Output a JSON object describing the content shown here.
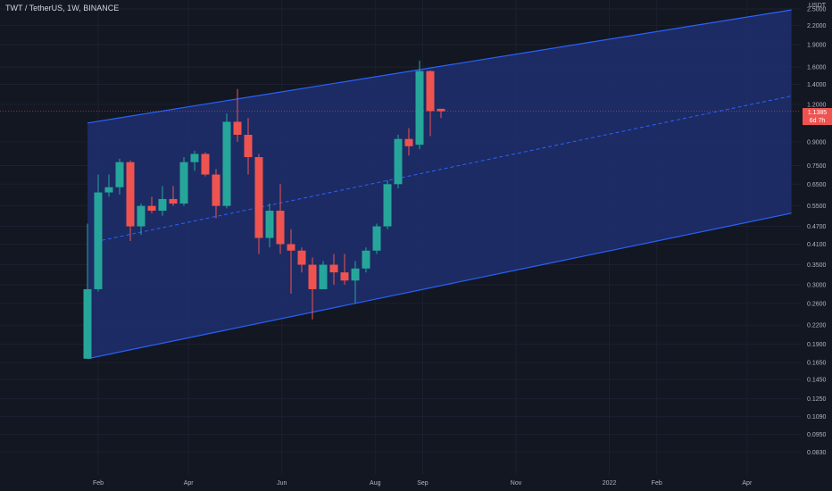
{
  "header": {
    "symbol_title": "TWT / TetherUS, 1W, BINANCE",
    "currency": "USDT"
  },
  "price_tag": {
    "price": "1.1385",
    "countdown": "6d 7h"
  },
  "colors": {
    "background": "#131722",
    "up": "#26a69a",
    "down": "#ef5350",
    "channel_line": "#2962ff",
    "channel_fill": "#1e2f6e",
    "axis_text": "#b2b5be"
  },
  "chart_data": {
    "type": "candlestick",
    "title": "TWT / TetherUS, 1W, BINANCE",
    "y_scale": "log",
    "y_axis_ticks": [
      "2.5000",
      "2.2000",
      "1.9000",
      "1.6000",
      "1.4000",
      "1.2000",
      "0.9000",
      "0.7500",
      "0.6500",
      "0.5500",
      "0.4700",
      "0.4100",
      "0.3500",
      "0.3000",
      "0.2600",
      "0.2200",
      "0.1900",
      "0.1650",
      "0.1450",
      "0.1250",
      "0.1090",
      "0.0950",
      "0.0830"
    ],
    "x_axis_ticks": [
      "Feb",
      "Apr",
      "Jun",
      "Aug",
      "Sep",
      "Nov",
      "2022",
      "Feb",
      "Apr"
    ],
    "x_axis_tick_dates": [
      "2021-02-01",
      "2021-04-01",
      "2021-06-01",
      "2021-08-01",
      "2021-09-01",
      "2021-11-01",
      "2022-01-01",
      "2022-02-01",
      "2022-04-01"
    ],
    "current_price": 1.1385,
    "candles": [
      {
        "date": "2021-01-25",
        "open": 0.17,
        "high": 0.48,
        "low": 0.17,
        "close": 0.29
      },
      {
        "date": "2021-02-01",
        "open": 0.29,
        "high": 0.7,
        "low": 0.285,
        "close": 0.61
      },
      {
        "date": "2021-02-08",
        "open": 0.61,
        "high": 0.7,
        "low": 0.59,
        "close": 0.635
      },
      {
        "date": "2021-02-15",
        "open": 0.635,
        "high": 0.79,
        "low": 0.6,
        "close": 0.77
      },
      {
        "date": "2021-02-22",
        "open": 0.77,
        "high": 0.78,
        "low": 0.42,
        "close": 0.47
      },
      {
        "date": "2021-03-01",
        "open": 0.47,
        "high": 0.56,
        "low": 0.44,
        "close": 0.55
      },
      {
        "date": "2021-03-08",
        "open": 0.55,
        "high": 0.59,
        "low": 0.52,
        "close": 0.53
      },
      {
        "date": "2021-03-15",
        "open": 0.53,
        "high": 0.64,
        "low": 0.51,
        "close": 0.58
      },
      {
        "date": "2021-03-22",
        "open": 0.58,
        "high": 0.64,
        "low": 0.55,
        "close": 0.56
      },
      {
        "date": "2021-03-29",
        "open": 0.56,
        "high": 0.8,
        "low": 0.55,
        "close": 0.77
      },
      {
        "date": "2021-04-05",
        "open": 0.77,
        "high": 0.84,
        "low": 0.72,
        "close": 0.82
      },
      {
        "date": "2021-04-12",
        "open": 0.82,
        "high": 0.83,
        "low": 0.69,
        "close": 0.7
      },
      {
        "date": "2021-04-19",
        "open": 0.7,
        "high": 0.73,
        "low": 0.5,
        "close": 0.55
      },
      {
        "date": "2021-04-26",
        "open": 0.55,
        "high": 1.12,
        "low": 0.54,
        "close": 1.05
      },
      {
        "date": "2021-05-03",
        "open": 1.05,
        "high": 1.35,
        "low": 0.9,
        "close": 0.95
      },
      {
        "date": "2021-05-10",
        "open": 0.95,
        "high": 1.08,
        "low": 0.7,
        "close": 0.8
      },
      {
        "date": "2021-05-17",
        "open": 0.8,
        "high": 0.82,
        "low": 0.38,
        "close": 0.43
      },
      {
        "date": "2021-05-24",
        "open": 0.43,
        "high": 0.56,
        "low": 0.4,
        "close": 0.53
      },
      {
        "date": "2021-05-31",
        "open": 0.53,
        "high": 0.65,
        "low": 0.38,
        "close": 0.41
      },
      {
        "date": "2021-06-07",
        "open": 0.41,
        "high": 0.46,
        "low": 0.28,
        "close": 0.39
      },
      {
        "date": "2021-06-14",
        "open": 0.39,
        "high": 0.4,
        "low": 0.33,
        "close": 0.35
      },
      {
        "date": "2021-06-21",
        "open": 0.35,
        "high": 0.37,
        "low": 0.23,
        "close": 0.29
      },
      {
        "date": "2021-06-28",
        "open": 0.29,
        "high": 0.36,
        "low": 0.29,
        "close": 0.35
      },
      {
        "date": "2021-07-05",
        "open": 0.35,
        "high": 0.38,
        "low": 0.3,
        "close": 0.33
      },
      {
        "date": "2021-07-12",
        "open": 0.33,
        "high": 0.38,
        "low": 0.3,
        "close": 0.31
      },
      {
        "date": "2021-07-19",
        "open": 0.31,
        "high": 0.36,
        "low": 0.26,
        "close": 0.34
      },
      {
        "date": "2021-07-26",
        "open": 0.34,
        "high": 0.4,
        "low": 0.33,
        "close": 0.39
      },
      {
        "date": "2021-08-02",
        "open": 0.39,
        "high": 0.48,
        "low": 0.38,
        "close": 0.47
      },
      {
        "date": "2021-08-09",
        "open": 0.47,
        "high": 0.67,
        "low": 0.46,
        "close": 0.65
      },
      {
        "date": "2021-08-16",
        "open": 0.65,
        "high": 0.95,
        "low": 0.63,
        "close": 0.92
      },
      {
        "date": "2021-08-23",
        "open": 0.92,
        "high": 1.0,
        "low": 0.81,
        "close": 0.87
      },
      {
        "date": "2021-08-30",
        "open": 0.88,
        "high": 1.68,
        "low": 0.85,
        "close": 1.55
      },
      {
        "date": "2021-09-06",
        "open": 1.55,
        "high": 1.56,
        "low": 0.94,
        "close": 1.14
      },
      {
        "date": "2021-09-13",
        "open": 1.16,
        "high": 1.16,
        "low": 1.08,
        "close": 1.1385
      }
    ],
    "channel": {
      "start_date": "2021-01-25",
      "end_date": "2022-04-30",
      "upper": [
        1.04,
        2.48
      ],
      "mid": [
        0.425,
        1.28
      ],
      "lower": [
        0.17,
        0.52
      ]
    }
  }
}
